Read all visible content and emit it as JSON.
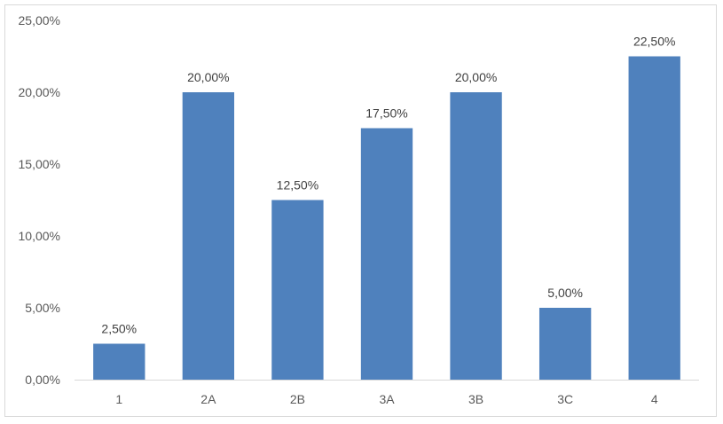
{
  "chart_data": {
    "type": "bar",
    "categories": [
      "1",
      "2A",
      "2B",
      "3A",
      "3B",
      "3C",
      "4"
    ],
    "values": [
      2.5,
      20.0,
      12.5,
      17.5,
      20.0,
      5.0,
      22.5
    ],
    "data_labels": [
      "2,50%",
      "20,00%",
      "12,50%",
      "17,50%",
      "20,00%",
      "5,00%",
      "22,50%"
    ],
    "title": "",
    "xlabel": "",
    "ylabel": "",
    "ylim": [
      0,
      25
    ],
    "yticks": [
      0,
      5,
      10,
      15,
      20,
      25
    ],
    "ytick_labels": [
      "0,00%",
      "5,00%",
      "10,00%",
      "15,00%",
      "20,00%",
      "25,00%"
    ],
    "grid": false,
    "legend": "none",
    "bar_color": "#4f81bd"
  }
}
